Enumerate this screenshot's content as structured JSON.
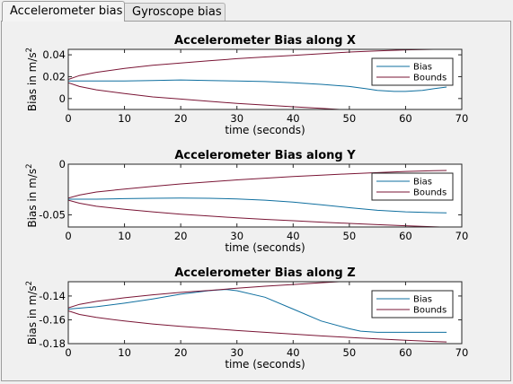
{
  "tabs": [
    {
      "label": "Accelerometer bias",
      "active": true
    },
    {
      "label": "Gyroscope bias",
      "active": false
    }
  ],
  "colors": {
    "bias": "#0f6f9f",
    "bounds": "#7a1535"
  },
  "chart_data": [
    {
      "type": "line",
      "title": "Accelerometer Bias along X",
      "xlabel": "time (seconds)",
      "ylabel": "Bias in m/s",
      "ylabel_sup": "2",
      "xlim": [
        0,
        70
      ],
      "ylim": [
        -0.01,
        0.045
      ],
      "xticks": [
        0,
        10,
        20,
        30,
        40,
        50,
        60,
        70
      ],
      "yticks": [
        0,
        0.02,
        0.04
      ],
      "ytick_labels": [
        "0",
        "0.02",
        "0.04"
      ],
      "legend": [
        "Bias",
        "Bounds"
      ],
      "legend_position": "top-right",
      "series": [
        {
          "name": "Bias",
          "x": [
            0,
            5,
            10,
            15,
            20,
            25,
            30,
            35,
            40,
            45,
            50,
            53,
            55,
            58,
            60,
            63,
            65,
            67.3
          ],
          "y": [
            0.016,
            0.016,
            0.016,
            0.0165,
            0.017,
            0.0165,
            0.016,
            0.0155,
            0.0145,
            0.013,
            0.011,
            0.009,
            0.0075,
            0.0065,
            0.0065,
            0.0075,
            0.009,
            0.0105
          ]
        },
        {
          "name": "Bounds",
          "x": [
            0,
            2,
            5,
            10,
            15,
            20,
            25,
            30,
            35,
            40,
            45,
            50,
            55,
            60,
            65,
            67.3
          ],
          "y": [
            0.0175,
            0.021,
            0.024,
            0.0275,
            0.0305,
            0.0325,
            0.0345,
            0.0365,
            0.038,
            0.0395,
            0.041,
            0.0425,
            0.0435,
            0.0445,
            0.045,
            0.0452
          ]
        },
        {
          "name": "Bounds",
          "x": [
            0,
            2,
            5,
            10,
            15,
            20,
            25,
            30,
            35,
            40,
            45,
            50,
            55,
            60,
            65,
            67.3
          ],
          "y": [
            0.0145,
            0.011,
            0.008,
            0.0045,
            0.0015,
            -0.0005,
            -0.0025,
            -0.0045,
            -0.006,
            -0.0075,
            -0.009,
            -0.0105,
            -0.0115,
            -0.0125,
            -0.013,
            -0.0132
          ]
        }
      ]
    },
    {
      "type": "line",
      "title": "Accelerometer Bias along Y",
      "xlabel": "time (seconds)",
      "ylabel": "Bias in m/s",
      "ylabel_sup": "2",
      "xlim": [
        0,
        70
      ],
      "ylim": [
        -0.062,
        0
      ],
      "xticks": [
        0,
        10,
        20,
        30,
        40,
        50,
        60,
        70
      ],
      "yticks": [
        0,
        -0.05
      ],
      "ytick_labels": [
        "0",
        "-0.05"
      ],
      "legend": [
        "Bias",
        "Bounds"
      ],
      "legend_position": "top-right",
      "series": [
        {
          "name": "Bias",
          "x": [
            0,
            5,
            10,
            15,
            20,
            25,
            30,
            35,
            40,
            45,
            50,
            55,
            60,
            65,
            67.3
          ],
          "y": [
            -0.0345,
            -0.0345,
            -0.034,
            -0.0337,
            -0.0335,
            -0.0337,
            -0.0343,
            -0.0355,
            -0.0375,
            -0.04,
            -0.043,
            -0.0455,
            -0.047,
            -0.0478,
            -0.048
          ]
        },
        {
          "name": "Bounds",
          "x": [
            0,
            2,
            5,
            10,
            15,
            20,
            25,
            30,
            35,
            40,
            45,
            50,
            55,
            60,
            65,
            67.3
          ],
          "y": [
            -0.0335,
            -0.0305,
            -0.0275,
            -0.0245,
            -0.022,
            -0.0195,
            -0.0175,
            -0.0155,
            -0.0138,
            -0.0122,
            -0.0108,
            -0.0095,
            -0.0083,
            -0.0072,
            -0.0065,
            -0.0062
          ]
        },
        {
          "name": "Bounds",
          "x": [
            0,
            2,
            5,
            10,
            15,
            20,
            25,
            30,
            35,
            40,
            45,
            50,
            55,
            60,
            65,
            67.3
          ],
          "y": [
            -0.0355,
            -0.0385,
            -0.0415,
            -0.0445,
            -0.047,
            -0.0493,
            -0.0512,
            -0.053,
            -0.0545,
            -0.0558,
            -0.0572,
            -0.0585,
            -0.0597,
            -0.0608,
            -0.0618,
            -0.0622
          ]
        }
      ]
    },
    {
      "type": "line",
      "title": "Accelerometer Bias along Z",
      "xlabel": "time (seconds)",
      "ylabel": "Bias in m/s",
      "ylabel_sup": "2",
      "xlim": [
        0,
        70
      ],
      "ylim": [
        -0.18,
        -0.128
      ],
      "xticks": [
        0,
        10,
        20,
        30,
        40,
        50,
        60,
        70
      ],
      "yticks": [
        -0.14,
        -0.16,
        -0.18
      ],
      "ytick_labels": [
        "-0.14",
        "-0.16",
        "-0.18"
      ],
      "legend": [
        "Bias",
        "Bounds"
      ],
      "legend_position": "top-right",
      "series": [
        {
          "name": "Bias",
          "x": [
            0,
            5,
            10,
            15,
            20,
            25,
            28,
            30,
            35,
            40,
            45,
            50,
            52,
            55,
            60,
            65,
            67.3
          ],
          "y": [
            -0.151,
            -0.149,
            -0.146,
            -0.1425,
            -0.1385,
            -0.1355,
            -0.1345,
            -0.1355,
            -0.141,
            -0.151,
            -0.161,
            -0.1675,
            -0.1695,
            -0.1705,
            -0.1705,
            -0.1705,
            -0.1705
          ]
        },
        {
          "name": "Bounds",
          "x": [
            0,
            2,
            5,
            10,
            15,
            20,
            25,
            30,
            35,
            40,
            45,
            50,
            55,
            60,
            65,
            67.3
          ],
          "y": [
            -0.15,
            -0.147,
            -0.1445,
            -0.1415,
            -0.139,
            -0.137,
            -0.1353,
            -0.1335,
            -0.1318,
            -0.1303,
            -0.1288,
            -0.1275,
            -0.1263,
            -0.1252,
            -0.1243,
            -0.124
          ]
        },
        {
          "name": "Bounds",
          "x": [
            0,
            2,
            5,
            10,
            15,
            20,
            25,
            30,
            35,
            40,
            45,
            50,
            55,
            60,
            65,
            67.3
          ],
          "y": [
            -0.1525,
            -0.1555,
            -0.158,
            -0.161,
            -0.1635,
            -0.1655,
            -0.1672,
            -0.169,
            -0.1705,
            -0.172,
            -0.1735,
            -0.1748,
            -0.176,
            -0.1771,
            -0.1782,
            -0.1786
          ]
        }
      ]
    }
  ]
}
